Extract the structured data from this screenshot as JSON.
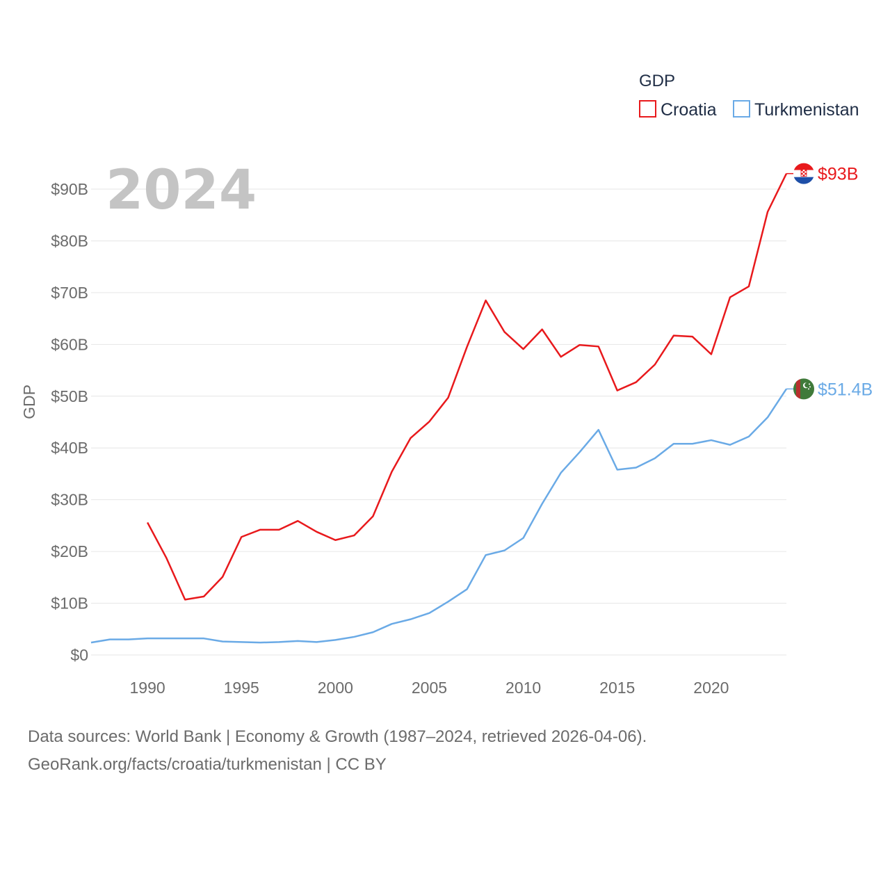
{
  "chart_data": {
    "type": "line",
    "title": "",
    "year_display": "2024",
    "xlabel": "",
    "ylabel": "GDP",
    "xlim": [
      1987,
      2024
    ],
    "ylim": [
      0,
      90
    ],
    "x_ticks": [
      1990,
      1995,
      2000,
      2005,
      2010,
      2015,
      2020
    ],
    "y_ticks": [
      0,
      10,
      20,
      30,
      40,
      50,
      60,
      70,
      80,
      90
    ],
    "y_tick_labels": [
      "$0",
      "$10B",
      "$20B",
      "$30B",
      "$40B",
      "$50B",
      "$60B",
      "$70B",
      "$80B",
      "$90B"
    ],
    "legend": {
      "title": "GDP",
      "position": "top-right",
      "entries": [
        "Croatia",
        "Turkmenistan"
      ]
    },
    "series": [
      {
        "name": "Croatia",
        "color": "#e8191c",
        "end_label": "$93B",
        "flag_icon": "croatia-flag-icon",
        "x": [
          1990,
          1991,
          1992,
          1993,
          1994,
          1995,
          1996,
          1997,
          1998,
          1999,
          2000,
          2001,
          2002,
          2003,
          2004,
          2005,
          2006,
          2007,
          2008,
          2009,
          2010,
          2011,
          2012,
          2013,
          2014,
          2015,
          2016,
          2017,
          2018,
          2019,
          2020,
          2021,
          2022,
          2023,
          2024
        ],
        "values": [
          25.6,
          18.8,
          10.7,
          11.3,
          15.1,
          22.8,
          24.2,
          24.2,
          25.9,
          23.8,
          22.2,
          23.1,
          26.8,
          35.4,
          41.9,
          45.1,
          49.7,
          59.5,
          68.5,
          62.4,
          59.1,
          62.9,
          57.6,
          59.9,
          59.6,
          51.1,
          52.7,
          56.1,
          61.7,
          61.5,
          58.1,
          69.1,
          71.2,
          85.6,
          93.0
        ]
      },
      {
        "name": "Turkmenistan",
        "color": "#6aaae6",
        "end_label": "$51.4B",
        "flag_icon": "turkmenistan-flag-icon",
        "x": [
          1987,
          1988,
          1989,
          1990,
          1991,
          1992,
          1993,
          1994,
          1995,
          1996,
          1997,
          1998,
          1999,
          2000,
          2001,
          2002,
          2003,
          2004,
          2005,
          2006,
          2007,
          2008,
          2009,
          2010,
          2011,
          2012,
          2013,
          2014,
          2015,
          2016,
          2017,
          2018,
          2019,
          2020,
          2021,
          2022,
          2023,
          2024
        ],
        "values": [
          2.4,
          3.0,
          3.0,
          3.2,
          3.2,
          3.2,
          3.2,
          2.6,
          2.5,
          2.4,
          2.5,
          2.7,
          2.5,
          2.9,
          3.5,
          4.4,
          6.0,
          6.9,
          8.1,
          10.3,
          12.7,
          19.3,
          20.2,
          22.6,
          29.2,
          35.2,
          39.2,
          43.5,
          35.8,
          36.2,
          38.0,
          40.8,
          40.8,
          41.5,
          40.6,
          42.2,
          45.9,
          51.4
        ]
      }
    ]
  },
  "source": {
    "line1": "Data sources: World Bank | Economy & Growth (1987–2024, retrieved 2026-04-06).",
    "line2": "GeoRank.org/facts/croatia/turkmenistan | CC BY"
  }
}
